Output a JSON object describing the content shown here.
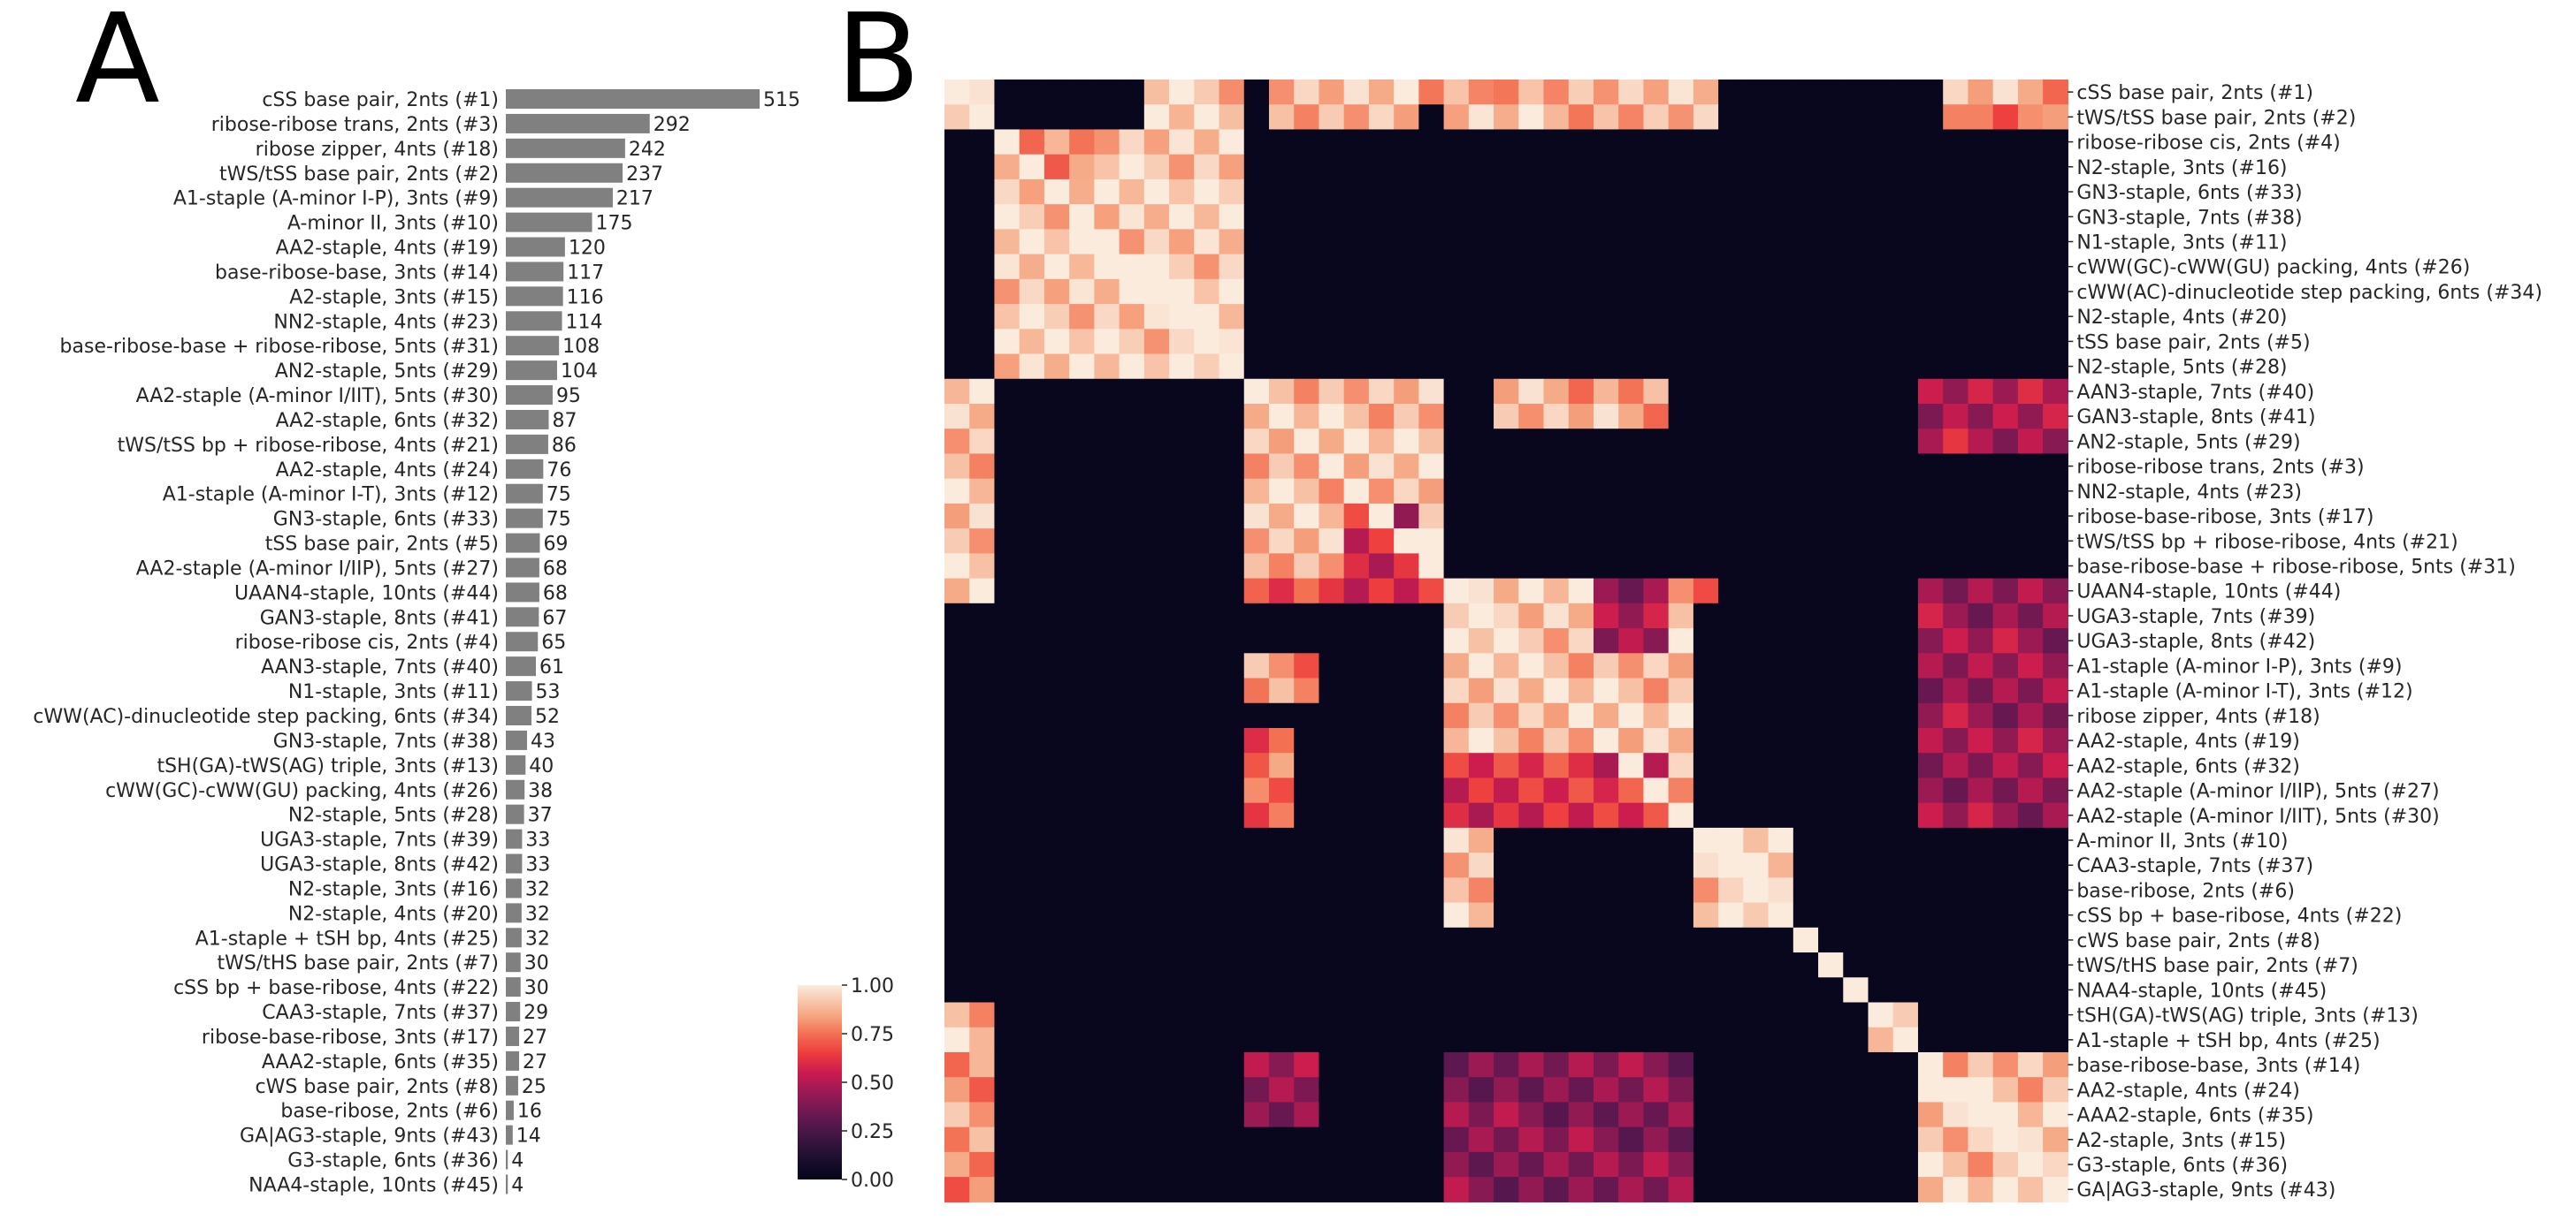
{
  "panels": [
    {
      "letter": "A"
    },
    {
      "letter": "B"
    }
  ],
  "chart_data": [
    {
      "type": "bar",
      "orientation": "horizontal",
      "bar_color": "#808080",
      "categories": [
        "cSS base pair, 2nts (#1)",
        "ribose-ribose trans, 2nts (#3)",
        "ribose zipper, 4nts (#18)",
        "tWS/tSS base pair, 2nts (#2)",
        "A1-staple (A-minor I-P), 3nts (#9)",
        "A-minor II, 3nts (#10)",
        "AA2-staple, 4nts (#19)",
        "base-ribose-base, 3nts (#14)",
        "A2-staple, 3nts (#15)",
        "NN2-staple, 4nts (#23)",
        "base-ribose-base + ribose-ribose, 5nts (#31)",
        "AN2-staple, 5nts (#29)",
        "AA2-staple (A-minor I/IIT), 5nts (#30)",
        "AA2-staple, 6nts (#32)",
        "tWS/tSS bp + ribose-ribose, 4nts (#21)",
        "AA2-staple, 4nts (#24)",
        "A1-staple (A-minor I-T), 3nts (#12)",
        "GN3-staple, 6nts (#33)",
        "tSS base pair, 2nts (#5)",
        "AA2-staple (A-minor I/IIP), 5nts (#27)",
        "UAAN4-staple, 10nts (#44)",
        "GAN3-staple, 8nts (#41)",
        "ribose-ribose cis, 2nts (#4)",
        "AAN3-staple, 7nts (#40)",
        "N1-staple, 3nts (#11)",
        "cWW(AC)-dinucleotide step packing, 6nts (#34)",
        "GN3-staple, 7nts (#38)",
        "tSH(GA)-tWS(AG) triple, 3nts (#13)",
        "cWW(GC)-cWW(GU) packing, 4nts (#26)",
        "N2-staple, 5nts (#28)",
        "UGA3-staple, 7nts (#39)",
        "UGA3-staple, 8nts (#42)",
        "N2-staple, 3nts (#16)",
        "N2-staple, 4nts (#20)",
        "A1-staple + tSH bp, 4nts (#25)",
        "tWS/tHS base pair, 2nts (#7)",
        "cSS bp + base-ribose, 4nts (#22)",
        "CAA3-staple, 7nts (#37)",
        "ribose-base-ribose, 3nts (#17)",
        "AAA2-staple, 6nts (#35)",
        "cWS base pair, 2nts (#8)",
        "base-ribose, 2nts (#6)",
        "GA|AG3-staple, 9nts (#43)",
        "G3-staple, 6nts (#36)",
        "NAA4-staple, 10nts (#45)"
      ],
      "values": [
        515,
        292,
        242,
        237,
        217,
        175,
        120,
        117,
        116,
        114,
        108,
        104,
        95,
        87,
        86,
        76,
        75,
        75,
        69,
        68,
        68,
        67,
        65,
        61,
        53,
        52,
        43,
        40,
        38,
        37,
        33,
        33,
        32,
        32,
        32,
        30,
        30,
        29,
        27,
        27,
        25,
        16,
        14,
        4,
        4
      ],
      "xlim": [
        0,
        515
      ]
    },
    {
      "type": "heatmap",
      "labels": [
        "cSS base pair, 2nts (#1)",
        "tWS/tSS base pair, 2nts (#2)",
        "ribose-ribose cis, 2nts (#4)",
        "N2-staple, 3nts (#16)",
        "GN3-staple, 6nts (#33)",
        "GN3-staple, 7nts (#38)",
        "N1-staple, 3nts (#11)",
        "cWW(GC)-cWW(GU) packing, 4nts (#26)",
        "cWW(AC)-dinucleotide step packing, 6nts (#34)",
        "N2-staple, 4nts (#20)",
        "tSS base pair, 2nts (#5)",
        "N2-staple, 5nts (#28)",
        "AAN3-staple, 7nts (#40)",
        "GAN3-staple, 8nts (#41)",
        "AN2-staple, 5nts (#29)",
        "ribose-ribose trans, 2nts (#3)",
        "NN2-staple, 4nts (#23)",
        "ribose-base-ribose, 3nts (#17)",
        "tWS/tSS bp + ribose-ribose, 4nts (#21)",
        "base-ribose-base + ribose-ribose, 5nts (#31)",
        "UAAN4-staple, 10nts (#44)",
        "UGA3-staple, 7nts (#39)",
        "UGA3-staple, 8nts (#42)",
        "A1-staple (A-minor I-P), 3nts (#9)",
        "A1-staple (A-minor I-T), 3nts (#12)",
        "ribose zipper, 4nts (#18)",
        "AA2-staple, 4nts (#19)",
        "AA2-staple, 6nts (#32)",
        "AA2-staple (A-minor I/IIP), 5nts (#27)",
        "AA2-staple (A-minor I/IIT), 5nts (#30)",
        "A-minor II, 3nts (#10)",
        "CAA3-staple, 7nts (#37)",
        "base-ribose, 2nts (#6)",
        "cSS bp + base-ribose, 4nts (#22)",
        "cWS base pair, 2nts (#8)",
        "tWS/tHS base pair, 2nts (#7)",
        "NAA4-staple, 10nts (#45)",
        "tSH(GA)-tWS(AG) triple, 3nts (#13)",
        "A1-staple + tSH bp, 4nts (#25)",
        "base-ribose-base, 3nts (#14)",
        "AA2-staple, 4nts (#24)",
        "AAA2-staple, 6nts (#35)",
        "A2-staple, 3nts (#15)",
        "G3-staple, 6nts (#36)",
        "GA|AG3-staple, 9nts (#43)"
      ],
      "colorbar": {
        "range": [
          0,
          1
        ],
        "ticks": [
          "0.00",
          "0.25",
          "0.50",
          "0.75",
          "1.00"
        ],
        "colormap": "rocket"
      },
      "blocks": [
        {
          "r": [
            0,
            1
          ],
          "c": [
            0,
            1
          ],
          "v": 0.95
        },
        {
          "r": [
            0,
            1
          ],
          "c": [
            8,
            11
          ],
          "v": 0.92
        },
        {
          "r": [
            0,
            1
          ],
          "c": [
            13,
            18
          ],
          "v": 0.9
        },
        {
          "r": [
            0,
            1
          ],
          "c": [
            20,
            30
          ],
          "v": 0.88
        },
        {
          "r": [
            0,
            1
          ],
          "c": [
            40,
            44
          ],
          "v": 0.85
        },
        {
          "r": [
            0,
            0
          ],
          "c": [
            19,
            21
          ],
          "v": 0.78
        },
        {
          "r": [
            1,
            1
          ],
          "c": [
            41,
            43
          ],
          "v": 0.7
        },
        {
          "r": [
            2,
            11
          ],
          "c": [
            2,
            11
          ],
          "v": 0.93
        },
        {
          "r": [
            2,
            3
          ],
          "c": [
            3,
            5
          ],
          "v": 0.75
        },
        {
          "r": [
            12,
            19
          ],
          "c": [
            12,
            19
          ],
          "v": 0.9
        },
        {
          "r": [
            12,
            20
          ],
          "c": [
            0,
            1
          ],
          "v": 0.9
        },
        {
          "r": [
            12,
            13
          ],
          "c": [
            22,
            28
          ],
          "v": 0.85
        },
        {
          "r": [
            17,
            19
          ],
          "c": [
            16,
            18
          ],
          "v": 0.55
        },
        {
          "r": [
            20,
            20
          ],
          "c": [
            12,
            30
          ],
          "v": 0.62
        },
        {
          "r": [
            20,
            29
          ],
          "c": [
            20,
            29
          ],
          "v": 0.9
        },
        {
          "r": [
            20,
            22
          ],
          "c": [
            26,
            28
          ],
          "v": 0.45
        },
        {
          "r": [
            23,
            24
          ],
          "c": [
            12,
            14
          ],
          "v": 0.8
        },
        {
          "r": [
            26,
            29
          ],
          "c": [
            12,
            13
          ],
          "v": 0.72
        },
        {
          "r": [
            27,
            29
          ],
          "c": [
            20,
            28
          ],
          "v": 0.6
        },
        {
          "r": [
            30,
            33
          ],
          "c": [
            30,
            33
          ],
          "v": 0.92
        },
        {
          "r": [
            30,
            33
          ],
          "c": [
            20,
            21
          ],
          "v": 0.88
        },
        {
          "r": [
            34,
            34
          ],
          "c": [
            34,
            34
          ],
          "v": 1.0
        },
        {
          "r": [
            35,
            35
          ],
          "c": [
            35,
            35
          ],
          "v": 1.0
        },
        {
          "r": [
            36,
            36
          ],
          "c": [
            36,
            36
          ],
          "v": 1.0
        },
        {
          "r": [
            37,
            38
          ],
          "c": [
            37,
            38
          ],
          "v": 1.0
        },
        {
          "r": [
            37,
            38
          ],
          "c": [
            0,
            1
          ],
          "v": 0.9
        },
        {
          "r": [
            39,
            44
          ],
          "c": [
            39,
            44
          ],
          "v": 0.9
        },
        {
          "r": [
            39,
            44
          ],
          "c": [
            0,
            1
          ],
          "v": 0.8
        },
        {
          "r": [
            39,
            44
          ],
          "c": [
            20,
            29
          ],
          "v": 0.4
        },
        {
          "r": [
            39,
            41
          ],
          "c": [
            12,
            14
          ],
          "v": 0.45
        },
        {
          "r": [
            20,
            29
          ],
          "c": [
            39,
            44
          ],
          "v": 0.45
        },
        {
          "r": [
            12,
            14
          ],
          "c": [
            39,
            44
          ],
          "v": 0.5
        }
      ]
    }
  ]
}
